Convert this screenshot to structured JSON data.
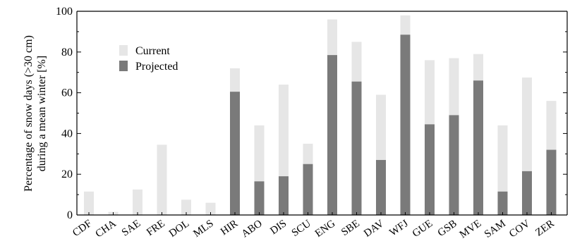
{
  "chart_data": {
    "type": "bar",
    "stacked_overlay": true,
    "ylabel_lines": [
      "Percentage of snow days (>30 cm)",
      "during a mean winter [%]"
    ],
    "xlabel": "",
    "ylim": [
      0,
      100
    ],
    "yticks": [
      "0",
      "20",
      "40",
      "60",
      "80",
      "100"
    ],
    "grid": false,
    "legend_position": "upper-left",
    "categories": [
      "CDF",
      "CHA",
      "SAE",
      "FRE",
      "DOL",
      "MLS",
      "HIR",
      "ABO",
      "DIS",
      "SCU",
      "ENG",
      "SBE",
      "DAV",
      "WFJ",
      "GUE",
      "GSB",
      "MVE",
      "SAM",
      "COV",
      "ZER"
    ],
    "series": [
      {
        "name": "Current",
        "color": "#e6e6e6",
        "values": [
          11.5,
          1.5,
          12.5,
          34.5,
          7.5,
          6,
          72,
          44,
          64,
          35,
          96,
          85,
          59,
          98,
          76,
          77,
          79,
          44,
          67.5,
          56
        ]
      },
      {
        "name": "Projected",
        "color": "#7a7a7a",
        "values": [
          0,
          0,
          0,
          0,
          0,
          0,
          60.5,
          16.5,
          19,
          25,
          78.5,
          65.5,
          27,
          88.5,
          44.5,
          49,
          66,
          11.5,
          21.5,
          32
        ]
      }
    ]
  }
}
